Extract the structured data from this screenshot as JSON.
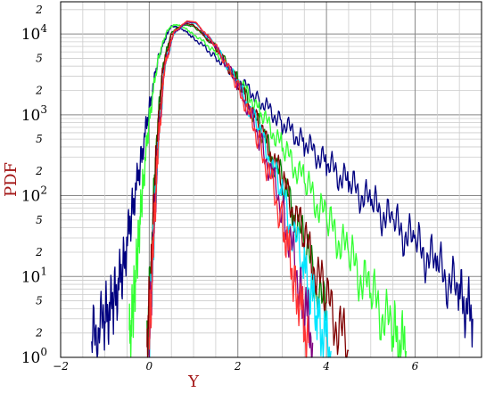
{
  "chart_data": {
    "type": "line",
    "title": "",
    "xlabel": "Y",
    "ylabel": "PDF",
    "xlim": [
      -2,
      7.5
    ],
    "ylim": [
      1,
      25000
    ],
    "yscale": "log",
    "grid": true,
    "x_ticks": [
      "−2",
      "0",
      "2",
      "4",
      "6"
    ],
    "y_major_ticks": [
      {
        "value": 1,
        "base": "10",
        "exp": "0"
      },
      {
        "value": 10,
        "base": "10",
        "exp": "1"
      },
      {
        "value": 100,
        "base": "10",
        "exp": "2"
      },
      {
        "value": 1000,
        "base": "10",
        "exp": "3"
      },
      {
        "value": 10000,
        "base": "10",
        "exp": "4"
      }
    ],
    "y_minor_labels": [
      {
        "value": 2,
        "label": "2"
      },
      {
        "value": 5,
        "label": "5"
      },
      {
        "value": 20,
        "label": "2"
      },
      {
        "value": 50,
        "label": "5"
      },
      {
        "value": 200,
        "label": "2"
      },
      {
        "value": 500,
        "label": "5"
      },
      {
        "value": 2000,
        "label": "2"
      },
      {
        "value": 5000,
        "label": "5"
      },
      {
        "value": 20000,
        "label": "2"
      }
    ],
    "series": [
      {
        "color": "#000080",
        "x": [
          -1.3,
          -1.0,
          -0.8,
          -0.6,
          -0.4,
          -0.2,
          0.0,
          0.2,
          0.4,
          0.5,
          0.7,
          1.0,
          1.5,
          2.0,
          2.5,
          3.0,
          3.5,
          4.0,
          4.5,
          5.0,
          5.5,
          6.0,
          6.5,
          7.0,
          7.3
        ],
        "y": [
          1.5,
          3,
          5,
          12,
          60,
          250,
          1200,
          5000,
          10000,
          12500,
          12000,
          9000,
          5200,
          2800,
          1500,
          800,
          450,
          250,
          140,
          80,
          45,
          25,
          13,
          6,
          3
        ]
      },
      {
        "color": "#33ff33",
        "x": [
          -0.45,
          -0.35,
          -0.25,
          -0.15,
          0.0,
          0.2,
          0.4,
          0.55,
          0.7,
          1.0,
          1.5,
          2.0,
          2.5,
          3.0,
          3.5,
          4.0,
          4.5,
          5.0,
          5.5,
          5.8
        ],
        "y": [
          1.5,
          5,
          25,
          120,
          900,
          5000,
          11000,
          13000,
          12800,
          10000,
          6000,
          2800,
          1100,
          400,
          150,
          50,
          18,
          6,
          2,
          1.2
        ]
      },
      {
        "color": "#008000",
        "x": [
          -0.05,
          0.05,
          0.15,
          0.3,
          0.5,
          0.75,
          1.0,
          1.5,
          2.0,
          2.5,
          3.0,
          3.5,
          4.0
        ],
        "y": [
          1.5,
          20,
          400,
          4000,
          10500,
          13000,
          12500,
          7000,
          2700,
          700,
          150,
          25,
          3
        ]
      },
      {
        "color": "#800000",
        "x": [
          -0.05,
          0.05,
          0.15,
          0.3,
          0.5,
          0.8,
          1.0,
          1.5,
          2.0,
          2.5,
          3.0,
          3.5,
          4.0,
          4.5
        ],
        "y": [
          1.5,
          15,
          300,
          3500,
          10000,
          13500,
          13000,
          6800,
          2500,
          700,
          150,
          30,
          5,
          1.2
        ]
      },
      {
        "color": "#00e5ff",
        "x": [
          0.0,
          0.1,
          0.2,
          0.35,
          0.55,
          0.85,
          1.05,
          1.5,
          2.0,
          2.5,
          3.0,
          3.5,
          3.8,
          4.1
        ],
        "y": [
          1.5,
          30,
          400,
          4000,
          10000,
          14000,
          13500,
          7000,
          2500,
          600,
          100,
          12,
          3,
          1.2
        ]
      },
      {
        "color": "#800080",
        "x": [
          0.0,
          0.1,
          0.2,
          0.35,
          0.55,
          0.85,
          1.05,
          1.5,
          2.0,
          2.5,
          3.0,
          3.4,
          3.7
        ],
        "y": [
          1.5,
          30,
          400,
          4000,
          10000,
          14000,
          13800,
          7000,
          2400,
          500,
          70,
          8,
          1.5
        ]
      },
      {
        "color": "#ff3333",
        "x": [
          0.0,
          0.1,
          0.2,
          0.35,
          0.55,
          0.85,
          1.05,
          1.5,
          2.0,
          2.5,
          3.0,
          3.3,
          3.6
        ],
        "y": [
          1.5,
          30,
          400,
          4000,
          10500,
          14500,
          14000,
          7200,
          2300,
          450,
          50,
          8,
          1.5
        ]
      }
    ]
  }
}
